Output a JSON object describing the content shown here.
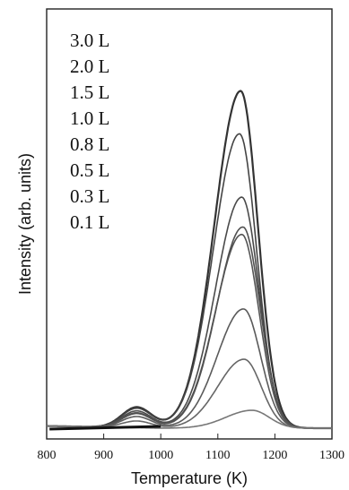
{
  "chart_data": {
    "type": "line",
    "xlabel": "Temperature (K)",
    "ylabel": "Intensity (arb. units)",
    "xlim": [
      800,
      1300
    ],
    "xticks": [
      800,
      900,
      1000,
      1100,
      1200,
      1300
    ],
    "ylim": [
      0,
      1.0
    ],
    "yticks_shown": false,
    "grid": false,
    "legend_position": "top-left",
    "legend_order": [
      "3.0 L",
      "2.0 L",
      "1.5 L",
      "1.0 L",
      "0.8 L",
      "0.5 L",
      "0.3 L",
      "0.1 L"
    ],
    "series": [
      {
        "name": "3.0 L",
        "peak_x": 1140,
        "peak_y": 0.905,
        "shoulder": 0.055
      },
      {
        "name": "2.0 L",
        "peak_x": 1138,
        "peak_y": 0.79,
        "shoulder": 0.052
      },
      {
        "name": "1.5 L",
        "peak_x": 1142,
        "peak_y": 0.62,
        "shoulder": 0.045
      },
      {
        "name": "1.0 L",
        "peak_x": 1142,
        "peak_y": 0.52,
        "shoulder": 0.04
      },
      {
        "name": "0.8 L",
        "peak_x": 1144,
        "peak_y": 0.54,
        "shoulder": 0.038
      },
      {
        "name": "0.5 L",
        "peak_x": 1145,
        "peak_y": 0.32,
        "shoulder": 0.03
      },
      {
        "name": "0.3 L",
        "peak_x": 1146,
        "peak_y": 0.185,
        "shoulder": 0.018
      },
      {
        "name": "0.1 L",
        "peak_x": 1160,
        "peak_y": 0.048,
        "shoulder": 0.0
      }
    ]
  }
}
